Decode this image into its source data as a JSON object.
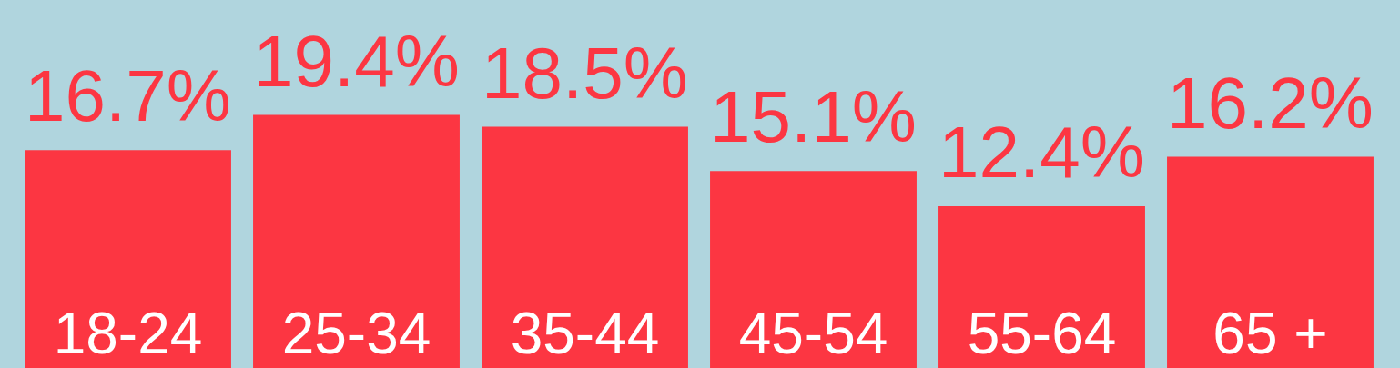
{
  "chart_data": {
    "type": "bar",
    "categories": [
      "18-24",
      "25-34",
      "35-44",
      "45-54",
      "55-64",
      "65 +"
    ],
    "values": [
      16.7,
      19.4,
      18.5,
      15.1,
      12.4,
      16.2
    ],
    "color": "#fc3642",
    "value_labels": [
      "16.7%",
      "19.4%",
      "18.5%",
      "15.1%",
      "12.4%",
      "16.2%"
    ],
    "tick_labels": "x"
  }
}
